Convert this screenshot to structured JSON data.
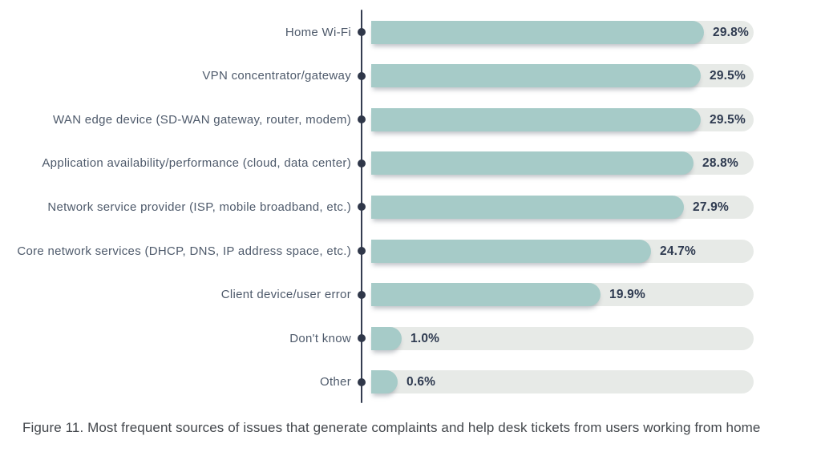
{
  "figure": {
    "caption": "Figure 11. Most frequent sources of issues that generate complaints and help desk tickets from users working from home"
  },
  "colors": {
    "bar_fill": "#a6cbc8",
    "bar_track": "#e7eae7",
    "axis_and_dots": "#343c50",
    "value_label_text": "#2e3a50",
    "category_label_text": "#4e5a6b",
    "caption_text": "#43474c",
    "background": "#ffffff"
  },
  "chart_data": {
    "type": "bar",
    "orientation": "horizontal",
    "title": "",
    "xlabel": "",
    "ylabel": "",
    "grid": false,
    "legend": false,
    "xlim": [
      0,
      34
    ],
    "categories": [
      "Home Wi-Fi",
      "VPN concentrator/gateway",
      "WAN edge device (SD-WAN gateway, router, modem)",
      "Application availability/performance (cloud, data center)",
      "Network service provider (ISP, mobile broadband, etc.)",
      "Core network services (DHCP, DNS, IP address space, etc.)",
      "Client device/user error",
      "Don't know",
      "Other"
    ],
    "values": [
      29.8,
      29.5,
      29.5,
      28.8,
      27.9,
      24.7,
      19.9,
      1.0,
      0.6
    ],
    "value_labels": [
      "29.8%",
      "29.5%",
      "29.5%",
      "28.8%",
      "27.9%",
      "24.7%",
      "19.9%",
      "1.0%",
      "0.6%"
    ]
  }
}
